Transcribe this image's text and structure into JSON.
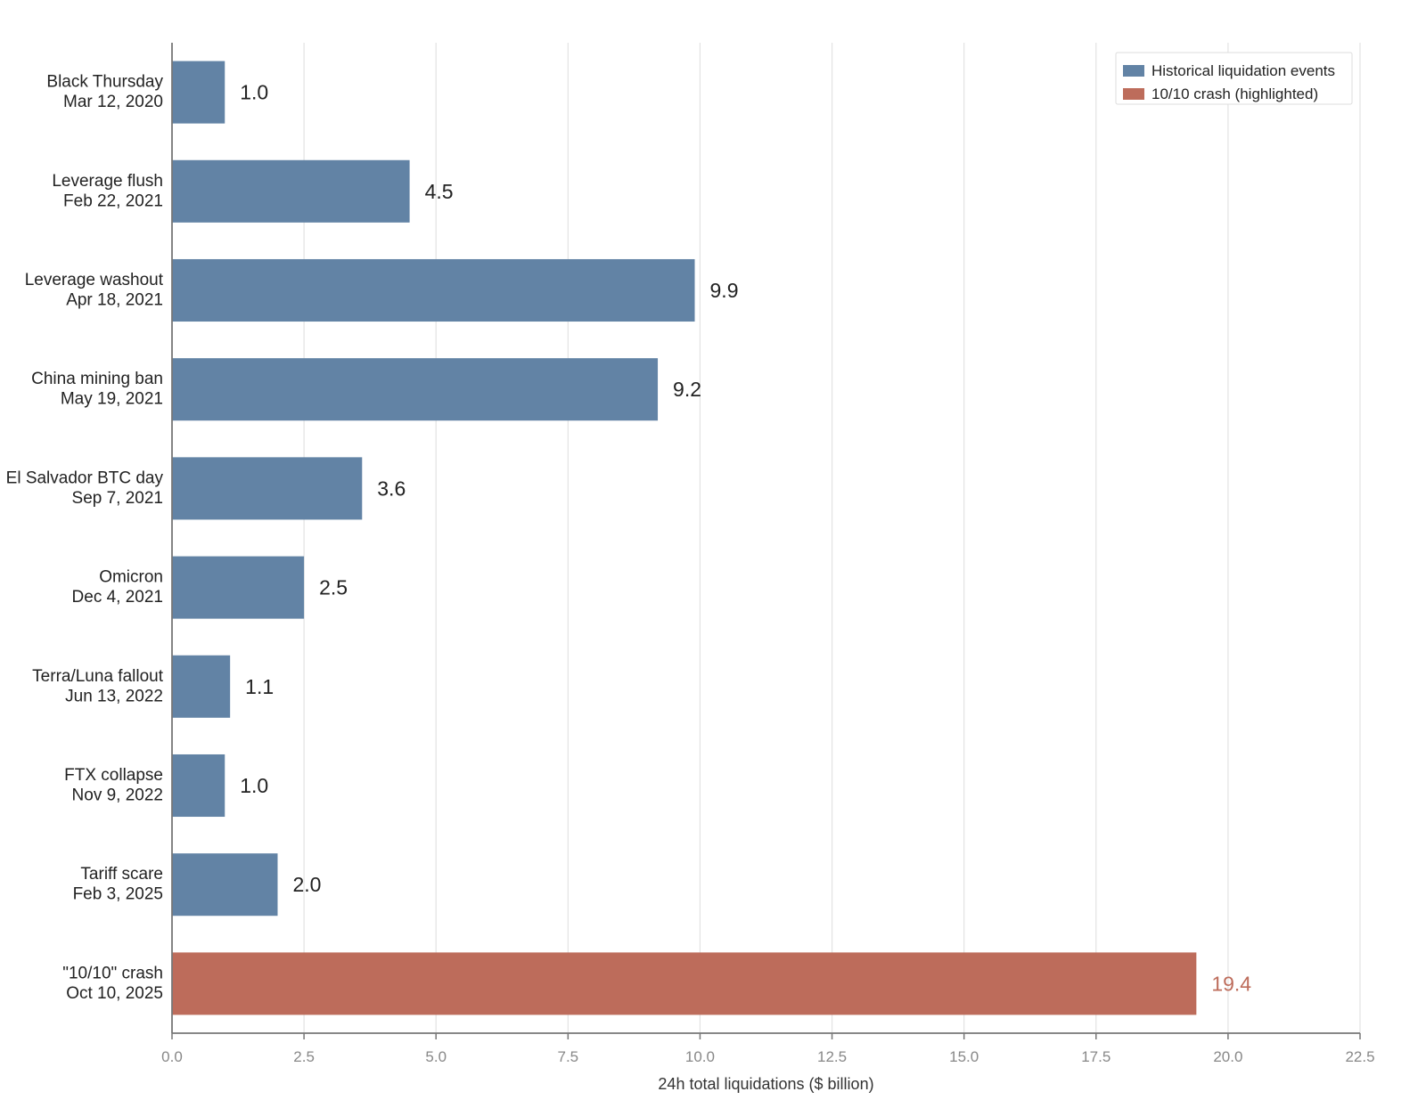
{
  "chart_data": {
    "type": "bar",
    "orientation": "horizontal",
    "categories": [
      [
        "Black Thursday",
        "Mar 12, 2020"
      ],
      [
        "Leverage flush",
        "Feb 22, 2021"
      ],
      [
        "Leverage washout",
        "Apr 18, 2021"
      ],
      [
        "China mining ban",
        "May 19, 2021"
      ],
      [
        "El Salvador BTC day",
        "Sep 7, 2021"
      ],
      [
        "Omicron",
        "Dec 4, 2021"
      ],
      [
        "Terra/Luna fallout",
        "Jun 13, 2022"
      ],
      [
        "FTX collapse",
        "Nov 9, 2022"
      ],
      [
        "Tariff scare",
        "Feb 3, 2025"
      ],
      [
        "\"10/10\" crash",
        "Oct 10, 2025"
      ]
    ],
    "values": [
      1.0,
      4.5,
      9.9,
      9.2,
      3.6,
      2.5,
      1.1,
      1.0,
      2.0,
      19.4
    ],
    "value_labels": [
      "1.0",
      "4.5",
      "9.9",
      "9.2",
      "3.6",
      "2.5",
      "1.1",
      "1.0",
      "2.0",
      "19.4"
    ],
    "highlighted_index": 9,
    "series": [
      {
        "name": "Historical liquidation events",
        "color": "#6283a5"
      },
      {
        "name": "10/10 crash (highlighted)",
        "color": "#bd6c5b"
      }
    ],
    "xlabel": "24h total liquidations ($ billion)",
    "ylabel": "",
    "xlim": [
      0,
      22.5
    ],
    "xticks": [
      "0.0",
      "2.5",
      "5.0",
      "7.5",
      "10.0",
      "12.5",
      "15.0",
      "17.5",
      "20.0",
      "22.5"
    ],
    "grid": "vertical",
    "legend_position": "top-right",
    "colors": {
      "bar": "#6283a5",
      "highlight": "#bd6c5b",
      "value_text": "#222222",
      "highlight_text": "#bd6c5b",
      "grid": "#e3e3e3",
      "axis": "#777777"
    }
  }
}
